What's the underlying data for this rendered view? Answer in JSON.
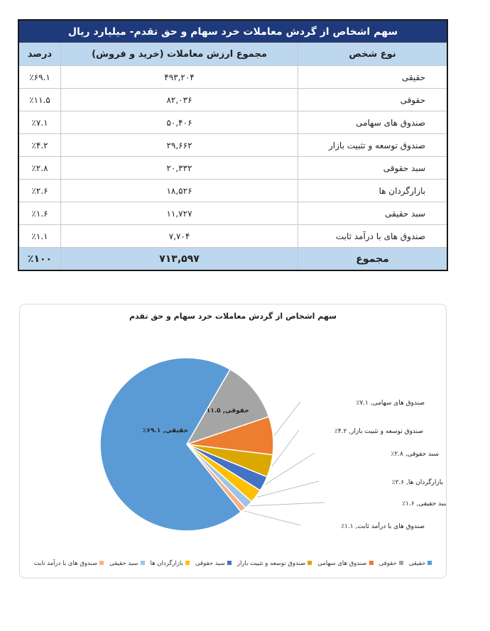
{
  "table": {
    "title": "سهم اشخاص از گردش معاملات خرد سهام و حق تقدم- میلیارد ریال",
    "headers": [
      "نوع شخص",
      "مجموع ارزش معاملات (خرید و فروش)",
      "درصد"
    ],
    "rows": [
      [
        "حقیقی",
        "۴۹۳,۲۰۴",
        "٪۶۹.۱"
      ],
      [
        "حقوقی",
        "۸۲,۰۳۶",
        "٪۱۱.۵"
      ],
      [
        "صندوق های سهامی",
        "۵۰,۴۰۶",
        "٪۷.۱"
      ],
      [
        "صندوق توسعه و تثبیت بازار",
        "۲۹,۶۶۲",
        "٪۴.۲"
      ],
      [
        "سبد حقوقی",
        "۲۰,۳۳۲",
        "٪۲.۸"
      ],
      [
        "بازارگردان ها",
        "۱۸,۵۲۶",
        "٪۲.۶"
      ],
      [
        "سبد حقیقی",
        "۱۱,۷۲۷",
        "٪۱.۶"
      ],
      [
        "صندوق های با درآمد ثابت",
        "۷,۷۰۴",
        "٪۱.۱"
      ]
    ],
    "total": [
      "مجموع",
      "۷۱۳,۵۹۷",
      "٪۱۰۰"
    ]
  },
  "chart_data": {
    "type": "pie",
    "title": "سهم اشخاص از گردش معاملات خرد سهام و حق تقدم",
    "legend_placement": "bottom",
    "slices": [
      {
        "name": "حقیقی",
        "value": 69.1,
        "label": "حقیقی, ۶۹.۱٪",
        "color": "#5b9bd5"
      },
      {
        "name": "حقوقی",
        "value": 11.5,
        "label": "حقوقی, ۱۱.۵٪",
        "color": "#a5a5a5"
      },
      {
        "name": "صندوق های سهامی",
        "value": 7.1,
        "label": "صندوق های سهامی, ۷.۱٪",
        "color": "#ed7d31"
      },
      {
        "name": "صندوق توسعه و تثبیت بازار",
        "value": 4.2,
        "label": "صندوق توسعه و تثبیت بازار, ۴.۲٪",
        "color": "#dba800"
      },
      {
        "name": "سبد حقوقی",
        "value": 2.8,
        "label": "سبد حقوقی, ۲.۸٪",
        "color": "#4472c4"
      },
      {
        "name": "بازارگردان ها",
        "value": 2.6,
        "label": "بازارگردان ها, ۲.۶٪",
        "color": "#ffc000"
      },
      {
        "name": "سبد حقیقی",
        "value": 1.6,
        "label": "سبد حقیقی, ۱.۶٪",
        "color": "#9dc3e6"
      },
      {
        "name": "صندوق های با درآمد ثابت",
        "value": 1.1,
        "label": "صندوق های با درآمد ثابت, ۱.۱٪",
        "color": "#f4b183"
      }
    ]
  }
}
